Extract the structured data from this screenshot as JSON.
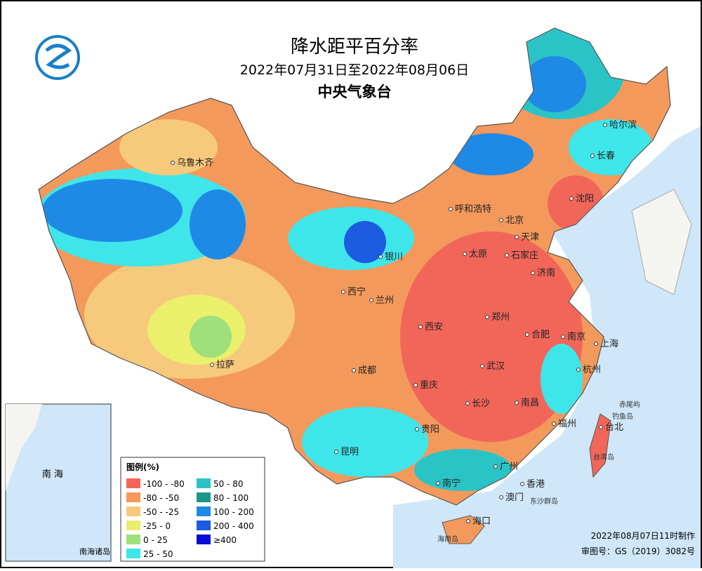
{
  "header": {
    "title": "降水距平百分率",
    "subtitle": "2022年07月31日至2022年08月06日",
    "organization": "中央气象台"
  },
  "cities": [
    "哈尔滨",
    "长春",
    "乌鲁木齐",
    "沈阳",
    "呼和浩特",
    "北京",
    "天津",
    "太原",
    "石家庄",
    "银川",
    "济南",
    "西宁",
    "兰州",
    "郑州",
    "西安",
    "合肥",
    "南京",
    "上海",
    "拉萨",
    "成都",
    "武汉",
    "杭州",
    "重庆",
    "长沙",
    "南昌",
    "贵阳",
    "福州",
    "台北",
    "昆明",
    "广州",
    "南宁",
    "香港",
    "澳门",
    "海口"
  ],
  "islands": [
    "赤尾屿",
    "钓鱼岛",
    "台湾岛",
    "东沙群岛",
    "海南岛"
  ],
  "legend": {
    "title": "图例(%)",
    "items": [
      {
        "label": "-100 - -80",
        "color": "#f2665a"
      },
      {
        "label": "-80 - -50",
        "color": "#f4995c"
      },
      {
        "label": "-50 - -25",
        "color": "#f7c97c"
      },
      {
        "label": "-25 - 0",
        "color": "#eaf06c"
      },
      {
        "label": "0 - 25",
        "color": "#9ee07a"
      },
      {
        "label": "25 - 50",
        "color": "#3ee6ea"
      },
      {
        "label": "50 - 80",
        "color": "#2ac4c6"
      },
      {
        "label": "80 - 100",
        "color": "#17968a"
      },
      {
        "label": "100 - 200",
        "color": "#1f8ae6"
      },
      {
        "label": "200 - 400",
        "color": "#1b5ce0"
      },
      {
        "label": "≥400",
        "color": "#0b0bd6"
      }
    ]
  },
  "inset": {
    "label": "南海诸岛",
    "sea": "南  海"
  },
  "footer": {
    "made": "2022年08月07日11时制作",
    "approval": "审图号：GS（2019）3082号"
  }
}
